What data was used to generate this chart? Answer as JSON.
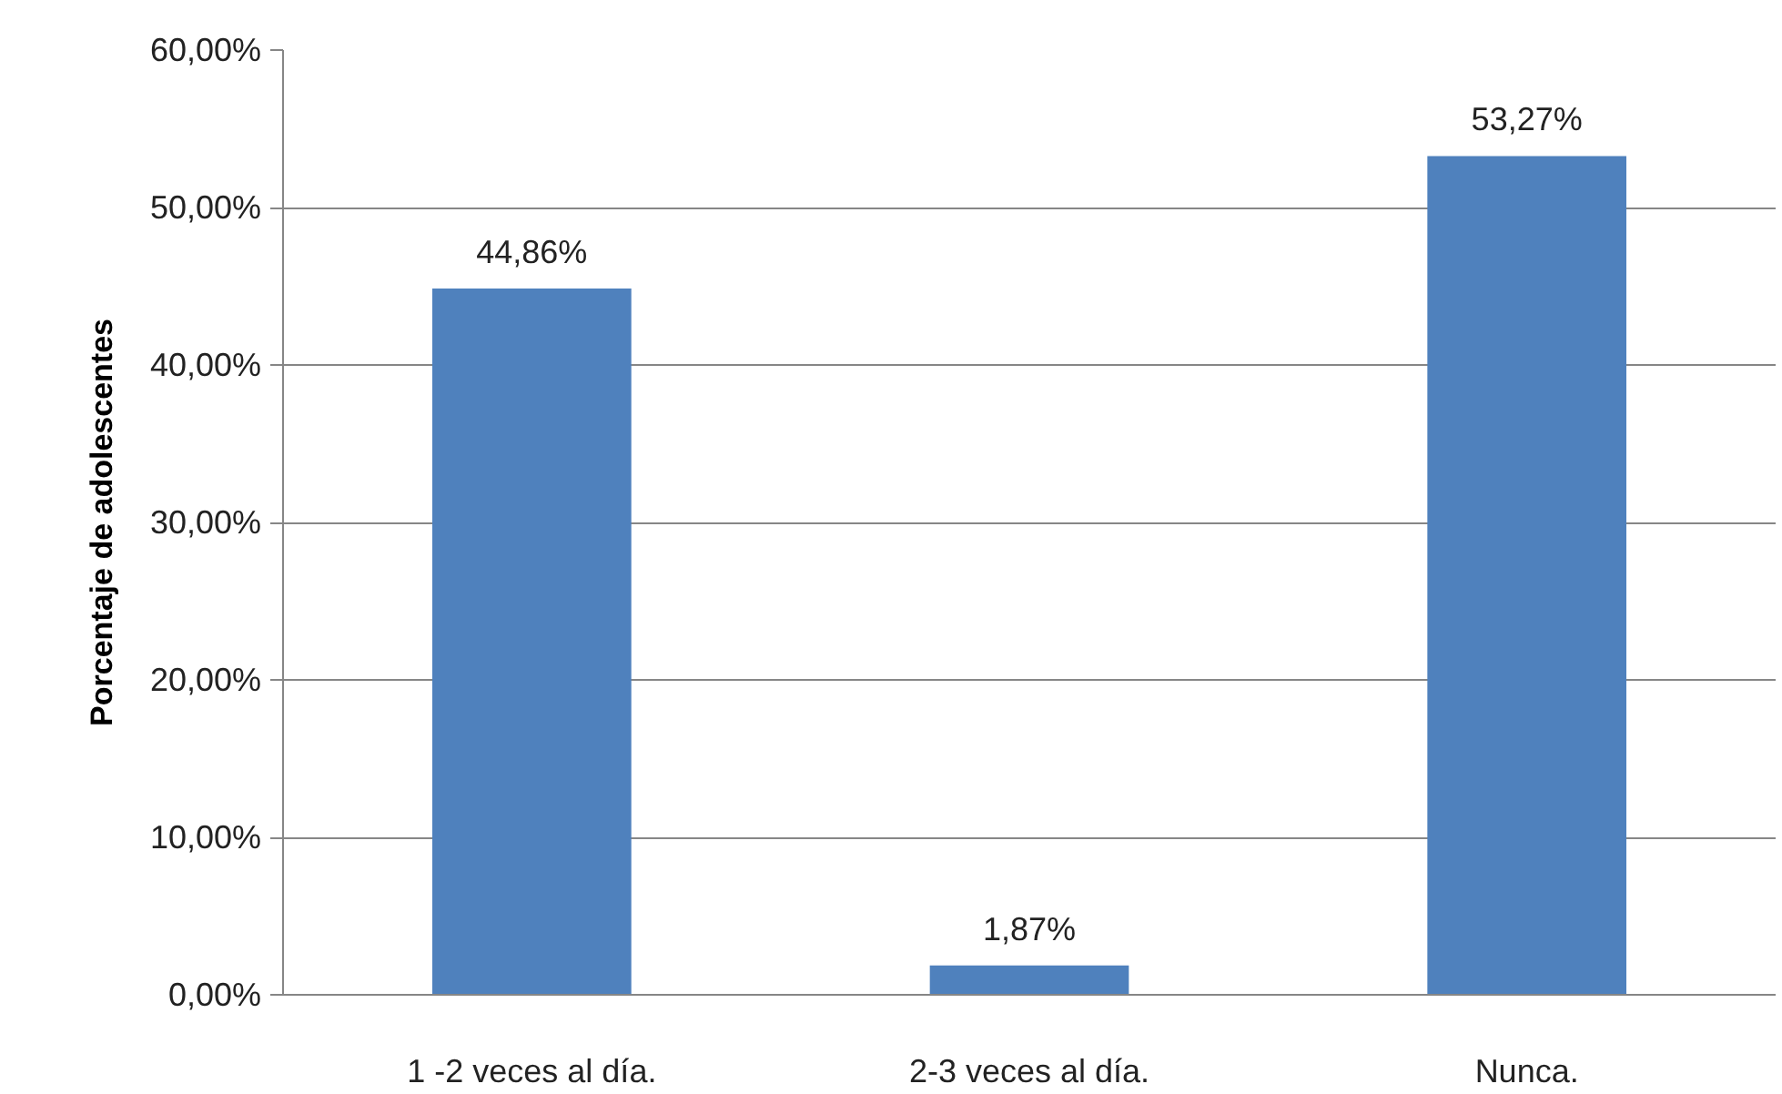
{
  "chart_data": {
    "type": "bar",
    "ylabel": "Porcentaje de adolescentes",
    "categories": [
      "1 -2 veces al día.",
      "2-3 veces al día.",
      "Nunca."
    ],
    "values": [
      44.86,
      1.87,
      53.27
    ],
    "color": "#4f81bd",
    "value_labels": [
      "44,86%",
      "1,87%",
      "53,27%"
    ],
    "ylim": [
      0,
      60
    ],
    "yticks": [
      {
        "value": 0,
        "label": "0,00%"
      },
      {
        "value": 10,
        "label": "10,00%"
      },
      {
        "value": 20,
        "label": "20,00%"
      },
      {
        "value": 30,
        "label": "30,00%"
      },
      {
        "value": 40,
        "label": "40,00%"
      },
      {
        "value": 50,
        "label": "50,00%"
      },
      {
        "value": 60,
        "label": "60,00%"
      }
    ],
    "grid": "y",
    "legend": false
  }
}
